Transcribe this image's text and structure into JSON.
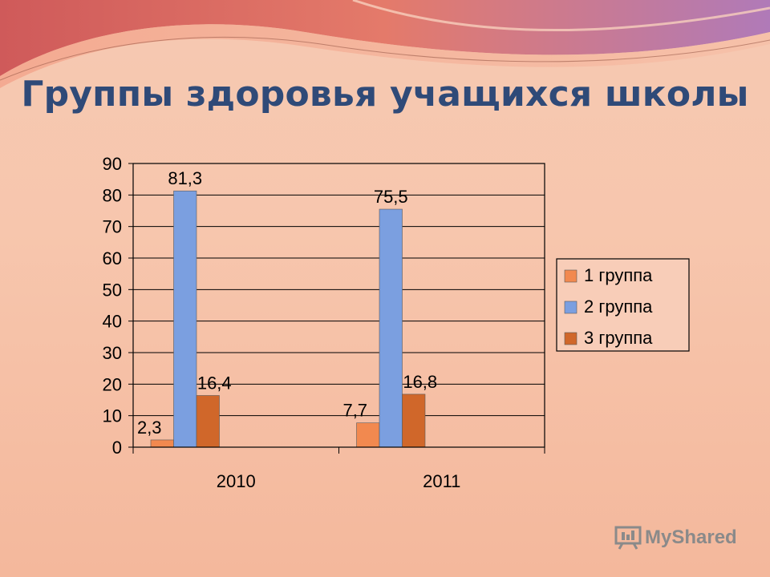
{
  "slide": {
    "title": "Группы здоровья учащихся школы"
  },
  "chart_data": {
    "type": "bar",
    "title": "",
    "xlabel": "",
    "ylabel": "",
    "categories": [
      "2010",
      "2011"
    ],
    "series": [
      {
        "name": "1 группа",
        "values": [
          2.3,
          7.7
        ],
        "labels": [
          "2,3",
          "7,7"
        ],
        "color": "#f2894f"
      },
      {
        "name": "2 группа",
        "values": [
          81.3,
          75.5
        ],
        "labels": [
          "81,3",
          "75,5"
        ],
        "color": "#7b9fe0"
      },
      {
        "name": "3 группа",
        "values": [
          16.4,
          16.8
        ],
        "labels": [
          "16,4",
          "16,8"
        ],
        "color": "#d0672a"
      }
    ],
    "ylim": [
      0,
      90
    ],
    "yticks": [
      0,
      10,
      20,
      30,
      40,
      50,
      60,
      70,
      80,
      90
    ],
    "grid": true,
    "legend": "right"
  },
  "watermark": {
    "text": "MyShared"
  }
}
